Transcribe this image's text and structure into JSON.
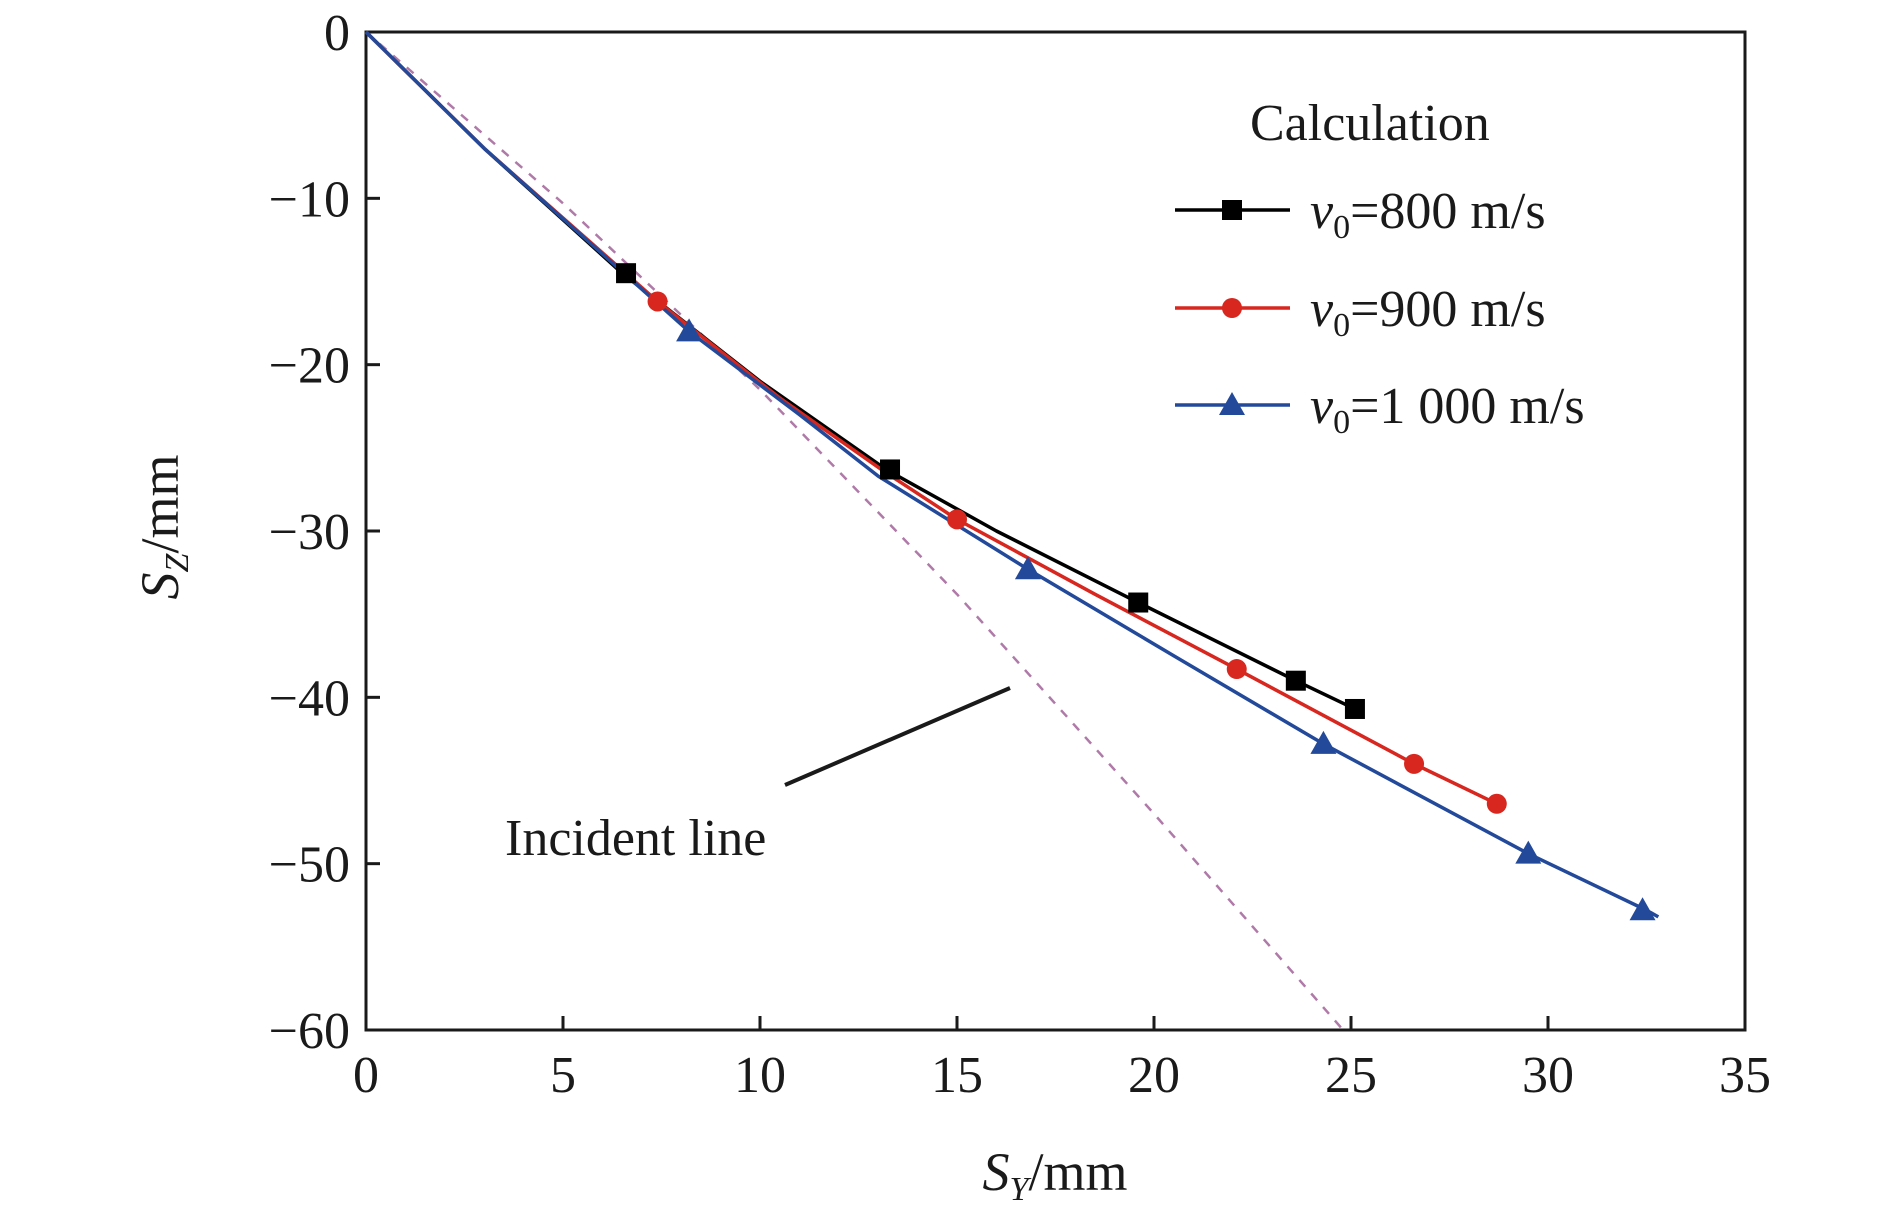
{
  "chart_data": {
    "type": "line",
    "xlabel": {
      "main": "S",
      "sub": "Y",
      "unit": "/mm"
    },
    "ylabel": {
      "main": "S",
      "sub": "Z",
      "unit": "/mm"
    },
    "xlim": [
      0,
      35
    ],
    "ylim": [
      -60,
      0
    ],
    "xticks": [
      "0",
      "5",
      "10",
      "15",
      "20",
      "25",
      "30",
      "35"
    ],
    "yticks": [
      "0",
      "−10",
      "−20",
      "−30",
      "−40",
      "−50",
      "−60"
    ],
    "xtick_values": [
      0,
      5,
      10,
      15,
      20,
      25,
      30,
      35
    ],
    "ytick_values": [
      0,
      -10,
      -20,
      -30,
      -40,
      -50,
      -60
    ],
    "grid": false,
    "legend": {
      "title": "Calculation",
      "placement": "top-right"
    },
    "series": [
      {
        "label_main": "v",
        "label_sub": "0",
        "label_rest": "=800 m/s",
        "color": "#000000",
        "marker": "square",
        "line": [
          [
            0,
            0
          ],
          [
            3,
            -7
          ],
          [
            6.5,
            -14.5
          ],
          [
            10,
            -21
          ],
          [
            13.2,
            -26.3
          ],
          [
            16,
            -30
          ],
          [
            19.6,
            -34.3
          ],
          [
            23.6,
            -39
          ],
          [
            25.1,
            -40.7
          ]
        ],
        "markers": [
          [
            6.6,
            -14.5
          ],
          [
            13.3,
            -26.3
          ],
          [
            19.6,
            -34.3
          ],
          [
            23.6,
            -39
          ],
          [
            25.1,
            -40.7
          ]
        ]
      },
      {
        "label_main": "v",
        "label_sub": "0",
        "label_rest": "=900 m/s",
        "color": "#d7271f",
        "marker": "circle",
        "line": [
          [
            0,
            0
          ],
          [
            3,
            -7
          ],
          [
            7.4,
            -16.2
          ],
          [
            10.5,
            -22
          ],
          [
            13.2,
            -26.5
          ],
          [
            15,
            -29.3
          ],
          [
            18.5,
            -33.8
          ],
          [
            22.1,
            -38.3
          ],
          [
            26.6,
            -44
          ],
          [
            28.7,
            -46.4
          ]
        ],
        "markers": [
          [
            7.4,
            -16.2
          ],
          [
            15,
            -29.3
          ],
          [
            22.1,
            -38.3
          ],
          [
            26.6,
            -44
          ],
          [
            28.7,
            -46.4
          ]
        ]
      },
      {
        "label_main": "v",
        "label_sub": "0",
        "label_rest": "=1 000 m/s",
        "color": "#234a9a",
        "marker": "triangle",
        "line": [
          [
            0,
            0
          ],
          [
            3,
            -7
          ],
          [
            8.2,
            -18
          ],
          [
            11,
            -23
          ],
          [
            13,
            -26.7
          ],
          [
            16.8,
            -32.3
          ],
          [
            20.5,
            -37.5
          ],
          [
            24.3,
            -42.8
          ],
          [
            29.5,
            -49.4
          ],
          [
            32.5,
            -52.8
          ],
          [
            32.8,
            -53.2
          ]
        ],
        "markers": [
          [
            8.2,
            -18
          ],
          [
            16.8,
            -32.3
          ],
          [
            24.3,
            -42.8
          ],
          [
            29.5,
            -49.4
          ],
          [
            32.4,
            -52.8
          ]
        ]
      }
    ],
    "incident_line": {
      "label": "Incident line",
      "color": "#b07aa8",
      "points": [
        [
          0,
          0
        ],
        [
          5,
          -10.3
        ],
        [
          10,
          -21.5
        ],
        [
          15,
          -33.8
        ],
        [
          20,
          -47
        ],
        [
          24.8,
          -60
        ]
      ]
    }
  }
}
